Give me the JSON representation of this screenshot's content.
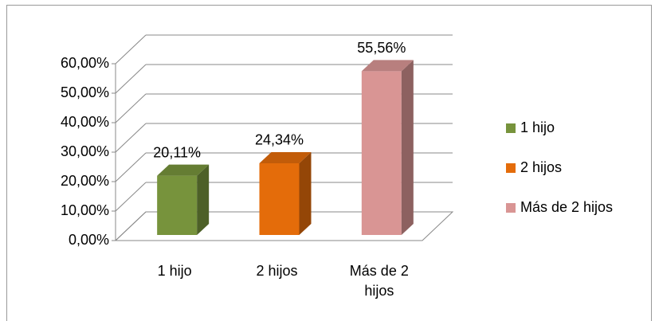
{
  "chart_data": {
    "type": "bar3d",
    "categories": [
      "1 hijo",
      "2 hijos",
      "Más de 2 hijos"
    ],
    "values": [
      20.11,
      24.34,
      55.56
    ],
    "value_labels": [
      "20,11%",
      "24,34%",
      "55,56%"
    ],
    "colors": [
      "#77933c",
      "#e46c0a",
      "#d99594"
    ],
    "ylim": [
      0,
      60
    ],
    "yticks": [
      {
        "value": 0,
        "label": "0,00%"
      },
      {
        "value": 10,
        "label": "10,00%"
      },
      {
        "value": 20,
        "label": "20,00%"
      },
      {
        "value": 30,
        "label": "30,00%"
      },
      {
        "value": 40,
        "label": "40,00%"
      },
      {
        "value": 50,
        "label": "50,00%"
      },
      {
        "value": 60,
        "label": "60,00%"
      }
    ],
    "grid": true,
    "legend": "right"
  }
}
